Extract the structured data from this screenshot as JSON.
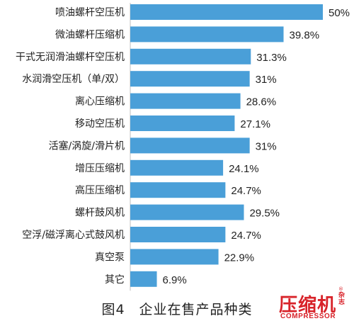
{
  "chart_data": {
    "type": "bar",
    "orientation": "horizontal",
    "categories": [
      "喷油螺杆空压机",
      "微油螺杆压缩机",
      "干式无润滑油螺杆空压机",
      "水润滑空压机（单/双）",
      "离心压缩机",
      "移动空压机",
      "活塞/涡旋/滑片机",
      "增压压缩机",
      "高压压缩机",
      "螺杆鼓风机",
      "空浮/磁浮离心式鼓风机",
      "真空泵",
      "其它"
    ],
    "values": [
      50,
      39.8,
      31.3,
      31,
      28.6,
      27.1,
      31,
      24.1,
      24.7,
      29.5,
      24.7,
      22.9,
      6.9
    ],
    "value_labels": [
      "50%",
      "39.8%",
      "31.3%",
      "31%",
      "28.6%",
      "27.1%",
      "31%",
      "24.1%",
      "24.7%",
      "29.5%",
      "24.7%",
      "22.9%",
      "6.9%"
    ],
    "xlim": [
      0,
      50
    ],
    "bar_color": "#4a9fd8",
    "grid": false,
    "legend": "none"
  },
  "caption": "图4　企业在售产品种类",
  "logo": {
    "main": "压缩机",
    "side": "杂志",
    "registered": "®",
    "sub": "COMPRESSOR"
  }
}
